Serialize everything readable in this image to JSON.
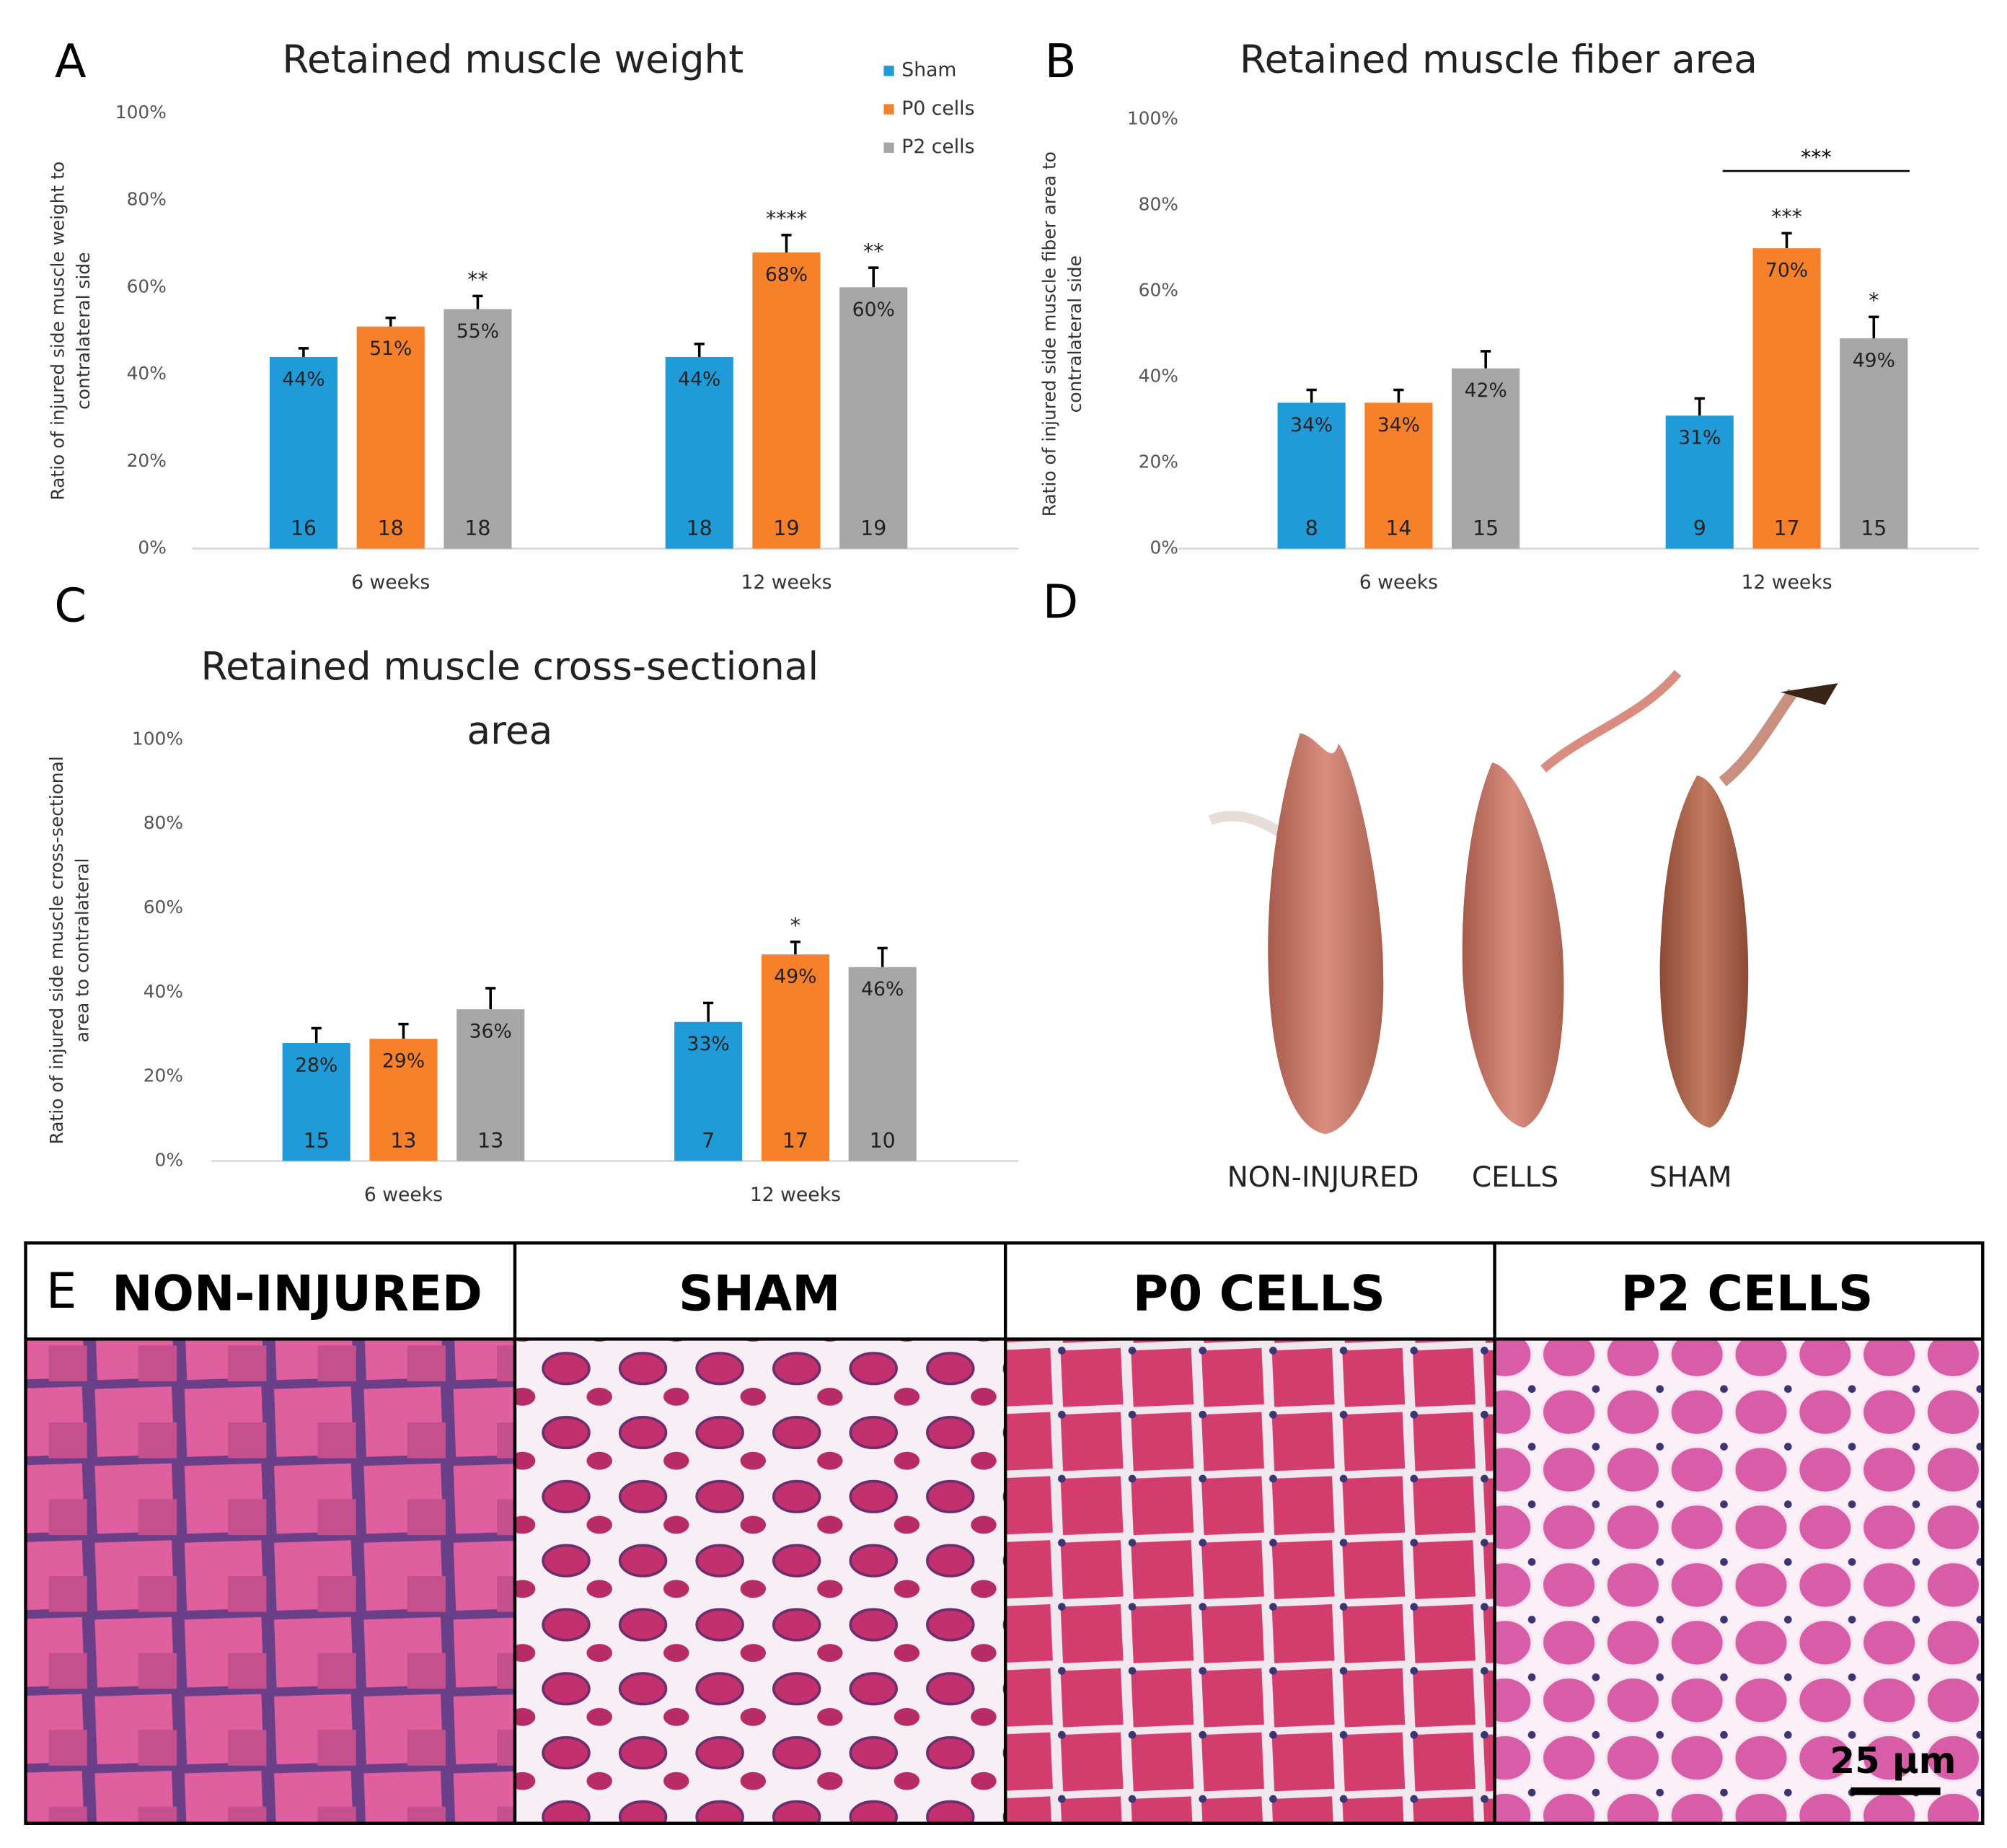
{
  "chart_data": [
    {
      "type": "bar",
      "panel": "A",
      "title": [
        "Retained muscle weight"
      ],
      "ylabel": [
        "Ratio of injured side muscle weight to",
        "contralateral side"
      ],
      "categories": [
        "6 weeks",
        "12 weeks"
      ],
      "legend": true,
      "ylim": [
        0,
        100
      ],
      "yticks": [
        {
          "value": 0,
          "label": "0%"
        },
        {
          "value": 20,
          "label": "20%"
        },
        {
          "value": 40,
          "label": "40%"
        },
        {
          "value": 60,
          "label": "60%"
        },
        {
          "value": 80,
          "label": "80%"
        },
        {
          "value": 100,
          "label": "100%"
        }
      ],
      "series": [
        {
          "name": "Sham",
          "color": "#1f9bd7",
          "values": [
            44,
            44
          ],
          "value_labels": [
            "44%",
            "44%"
          ],
          "errors": [
            2,
            3
          ],
          "counts": [
            "16",
            "18"
          ],
          "stars": [
            null,
            null
          ]
        },
        {
          "name": "P0 cells",
          "color": "#f7802a",
          "values": [
            51,
            68
          ],
          "value_labels": [
            "51%",
            "68%"
          ],
          "errors": [
            2,
            4
          ],
          "counts": [
            "18",
            "19"
          ],
          "stars": [
            null,
            "****"
          ]
        },
        {
          "name": "P2 cells",
          "color": "#a6a6a6",
          "values": [
            55,
            60
          ],
          "value_labels": [
            "55%",
            "60%"
          ],
          "errors": [
            3,
            4.5
          ],
          "counts": [
            "18",
            "19"
          ],
          "stars": [
            "**",
            "**"
          ]
        }
      ]
    },
    {
      "type": "bar",
      "panel": "B",
      "title": [
        "Retained muscle fiber area"
      ],
      "ylabel": [
        "Ratio of injured side muscle fiber area to",
        "contralateral side"
      ],
      "categories": [
        "6 weeks",
        "12 weeks"
      ],
      "legend": false,
      "bracket": "***",
      "ylim": [
        0,
        100
      ],
      "yticks": [
        {
          "value": 0,
          "label": "0%"
        },
        {
          "value": 20,
          "label": "20%"
        },
        {
          "value": 40,
          "label": "40%"
        },
        {
          "value": 60,
          "label": "60%"
        },
        {
          "value": 80,
          "label": "80%"
        },
        {
          "value": 100,
          "label": "100%"
        }
      ],
      "series": [
        {
          "color": "#1f9bd7",
          "values": [
            34,
            31
          ],
          "value_labels": [
            "34%",
            "31%"
          ],
          "errors": [
            3,
            4
          ],
          "counts": [
            "8",
            "9"
          ],
          "stars": [
            null,
            null
          ]
        },
        {
          "color": "#f7802a",
          "values": [
            34,
            70
          ],
          "value_labels": [
            "34%",
            "70%"
          ],
          "errors": [
            3,
            3.5
          ],
          "counts": [
            "14",
            "17"
          ],
          "stars": [
            null,
            "***"
          ]
        },
        {
          "color": "#a6a6a6",
          "values": [
            42,
            49
          ],
          "value_labels": [
            "42%",
            "49%"
          ],
          "errors": [
            4,
            5
          ],
          "counts": [
            "15",
            "15"
          ],
          "stars": [
            null,
            "*"
          ]
        }
      ]
    },
    {
      "type": "bar",
      "panel": "C",
      "title": [
        "Retained muscle cross-sectional",
        "area"
      ],
      "ylabel": [
        "Ratio of injured side muscle cross-sectional",
        "area to contralateral"
      ],
      "categories": [
        "6 weeks",
        "12 weeks"
      ],
      "legend": false,
      "ylim": [
        0,
        100
      ],
      "yticks": [
        {
          "value": 0,
          "label": "0%"
        },
        {
          "value": 20,
          "label": "20%"
        },
        {
          "value": 40,
          "label": "40%"
        },
        {
          "value": 60,
          "label": "60%"
        },
        {
          "value": 80,
          "label": "80%"
        },
        {
          "value": 100,
          "label": "100%"
        }
      ],
      "series": [
        {
          "color": "#1f9bd7",
          "values": [
            28,
            33
          ],
          "value_labels": [
            "28%",
            "33%"
          ],
          "errors": [
            3.5,
            4.5
          ],
          "counts": [
            "15",
            "7"
          ],
          "stars": [
            null,
            null
          ]
        },
        {
          "color": "#f7802a",
          "values": [
            29,
            49
          ],
          "value_labels": [
            "29%",
            "49%"
          ],
          "errors": [
            3.5,
            3
          ],
          "counts": [
            "13",
            "17"
          ],
          "stars": [
            null,
            "*"
          ]
        },
        {
          "color": "#a6a6a6",
          "values": [
            36,
            46
          ],
          "value_labels": [
            "36%",
            "46%"
          ],
          "errors": [
            5,
            4.5
          ],
          "counts": [
            "13",
            "10"
          ],
          "stars": [
            null,
            null
          ]
        }
      ]
    }
  ],
  "panel_d": {
    "panel": "D",
    "labels": [
      "NON-INJURED",
      "CELLS",
      "SHAM"
    ]
  },
  "panel_e": {
    "panel": "E",
    "headers": [
      "NON-INJURED",
      "SHAM",
      "P0 CELLS",
      "P2 CELLS"
    ],
    "scale_bar": "25 µm"
  }
}
